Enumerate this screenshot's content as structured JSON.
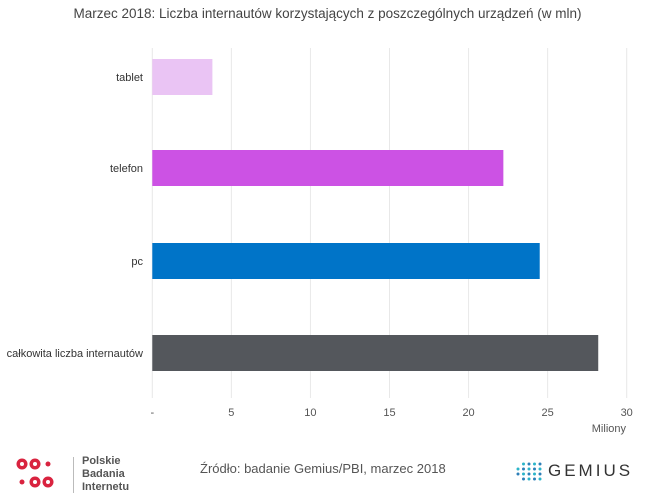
{
  "chart_data": {
    "type": "bar",
    "orientation": "horizontal",
    "title": "Marzec 2018: Liczba internautów korzystających z poszczególnych urządzeń (w mln)",
    "categories": [
      "tablet",
      "telefon",
      "pc",
      "całkowita liczba internautów"
    ],
    "values": [
      3.8,
      22.2,
      24.5,
      28.2
    ],
    "colors": [
      "#eac4f4",
      "#cc52e4",
      "#0074c8",
      "#54575c"
    ],
    "xlabel": "Miliony",
    "ylabel": "",
    "xlim": [
      0,
      30
    ],
    "xticks": [
      0,
      5,
      10,
      15,
      20,
      25,
      30
    ],
    "xtick_labels": [
      "-",
      "5",
      "10",
      "15",
      "20",
      "25",
      "30"
    ],
    "grid": true
  },
  "footer": {
    "source": "Źródło: badanie Gemius/PBI, marzec 2018",
    "pbi_logo": [
      "Polskie",
      "Badania",
      "Internetu"
    ],
    "gemius_logo": "GEMIUS",
    "pbi_color": "#d9233f",
    "gemius_color": "#2bb5c9"
  }
}
